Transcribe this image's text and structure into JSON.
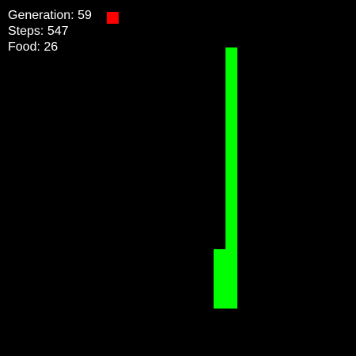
{
  "hud": {
    "generation_label": "Generation:",
    "generation": "59",
    "steps_label": "Steps:",
    "steps": "547",
    "food_label": "Food:",
    "food": "26"
  },
  "colors": {
    "background": "#000000",
    "snake": "#00ff00",
    "food": "#ff0000",
    "text": "#ffffff"
  }
}
